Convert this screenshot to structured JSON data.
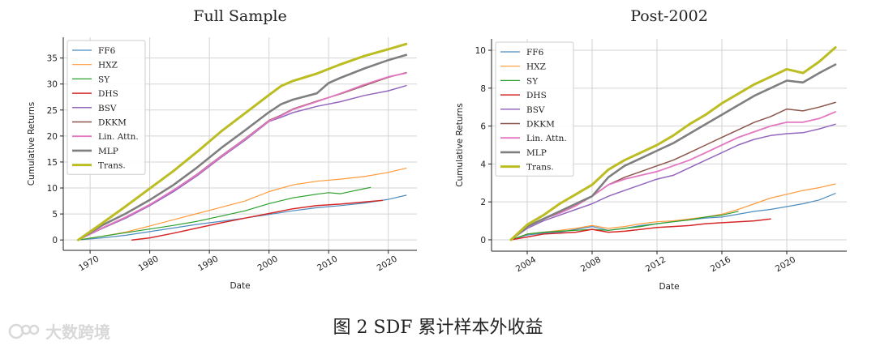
{
  "caption": "图 2 SDF 累计样本外收益",
  "watermark": "大数跨境",
  "chart_data": [
    {
      "type": "line",
      "title": "Full Sample",
      "xlabel": "Date",
      "ylabel": "Cumulative Returns",
      "xlim": [
        1965.5,
        2024.8
      ],
      "ylim": [
        -2,
        39
      ],
      "xticks": [
        1970,
        1980,
        1990,
        2000,
        2010,
        2020
      ],
      "yticks": [
        0,
        5,
        10,
        15,
        20,
        25,
        30,
        35
      ],
      "grid": true,
      "legend_position": "top-left",
      "series": [
        {
          "name": "FF6",
          "color": "#4c8cbf",
          "width": 1.2,
          "x": [
            1968,
            1972,
            1976,
            1980,
            1984,
            1988,
            1992,
            1996,
            2000,
            2004,
            2008,
            2012,
            2016,
            2020,
            2023
          ],
          "y": [
            0,
            0.4,
            0.9,
            1.6,
            2.3,
            3.0,
            3.6,
            4.2,
            4.9,
            5.6,
            6.2,
            6.6,
            7.1,
            7.8,
            8.6
          ]
        },
        {
          "name": "HXZ",
          "color": "#ff9a3c",
          "width": 1.2,
          "x": [
            1968,
            1972,
            1976,
            1980,
            1984,
            1988,
            1992,
            1996,
            2000,
            2004,
            2008,
            2012,
            2016,
            2020,
            2023
          ],
          "y": [
            0,
            0.7,
            1.5,
            2.7,
            3.9,
            5.1,
            6.3,
            7.5,
            9.3,
            10.6,
            11.3,
            11.7,
            12.2,
            13.0,
            13.8
          ]
        },
        {
          "name": "SY",
          "color": "#2ca02c",
          "width": 1.2,
          "x": [
            1968,
            1972,
            1976,
            1980,
            1984,
            1988,
            1992,
            1996,
            2000,
            2004,
            2008,
            2010,
            2012,
            2014,
            2017
          ],
          "y": [
            0,
            0.7,
            1.4,
            2.1,
            2.8,
            3.6,
            4.6,
            5.6,
            7.0,
            8.1,
            8.8,
            9.1,
            8.9,
            9.4,
            10.1
          ]
        },
        {
          "name": "DHS",
          "color": "#d62728",
          "width": 1.5,
          "x": [
            1977,
            1980,
            1984,
            1988,
            1992,
            1996,
            2000,
            2004,
            2008,
            2012,
            2016,
            2019
          ],
          "y": [
            0,
            0.4,
            1.3,
            2.3,
            3.3,
            4.2,
            5.1,
            6.0,
            6.6,
            6.9,
            7.3,
            7.6
          ]
        },
        {
          "name": "BSV",
          "color": "#9467bd",
          "width": 1.5,
          "x": [
            1968,
            1972,
            1976,
            1980,
            1984,
            1988,
            1992,
            1996,
            2000,
            2002,
            2004,
            2008,
            2012,
            2016,
            2020,
            2023
          ],
          "y": [
            0,
            2.2,
            4.2,
            6.6,
            9.3,
            12.4,
            15.9,
            19.2,
            22.8,
            23.6,
            24.5,
            25.7,
            26.6,
            27.8,
            28.7,
            29.7
          ]
        },
        {
          "name": "DKKM",
          "color": "#8c564b",
          "width": 1.5,
          "x": [
            1968,
            1972,
            1976,
            1980,
            1984,
            1988,
            1992,
            1996,
            2000,
            2002,
            2004,
            2008,
            2012,
            2016,
            2020,
            2023
          ],
          "y": [
            0,
            2.3,
            4.4,
            6.8,
            9.6,
            12.7,
            16.2,
            19.5,
            23.0,
            24.0,
            25.2,
            26.7,
            28.1,
            29.7,
            31.3,
            32.2
          ]
        },
        {
          "name": "Lin. Attn.",
          "color": "#e377c2",
          "width": 1.8,
          "x": [
            1968,
            1972,
            1976,
            1980,
            1984,
            1988,
            1992,
            1996,
            2000,
            2002,
            2004,
            2008,
            2012,
            2016,
            2020,
            2023
          ],
          "y": [
            0,
            2.3,
            4.4,
            6.8,
            9.6,
            12.6,
            16.1,
            19.4,
            22.9,
            23.9,
            25.1,
            26.6,
            28.2,
            29.9,
            31.4,
            32.1
          ]
        },
        {
          "name": "MLP",
          "color": "#7f7f7f",
          "width": 2.6,
          "x": [
            1968,
            1972,
            1976,
            1980,
            1984,
            1988,
            1992,
            1996,
            2000,
            2002,
            2004,
            2006,
            2008,
            2010,
            2012,
            2016,
            2020,
            2023
          ],
          "y": [
            0,
            2.8,
            5.1,
            7.7,
            10.6,
            14.0,
            17.7,
            21.1,
            24.6,
            26.1,
            27.0,
            27.6,
            28.2,
            30.2,
            31.2,
            33.0,
            34.6,
            35.6
          ]
        },
        {
          "name": "Trans.",
          "color": "#bcbd22",
          "width": 3.0,
          "x": [
            1968,
            1972,
            1976,
            1980,
            1984,
            1988,
            1992,
            1996,
            2000,
            2002,
            2004,
            2008,
            2012,
            2016,
            2020,
            2023
          ],
          "y": [
            0,
            3.2,
            6.5,
            9.9,
            13.3,
            17.0,
            20.9,
            24.4,
            27.9,
            29.6,
            30.6,
            32.0,
            33.8,
            35.4,
            36.7,
            37.7
          ]
        }
      ]
    },
    {
      "type": "line",
      "title": "Post-2002",
      "xlabel": "Date",
      "ylabel": "Cumulative Returns",
      "xlim": [
        2001.8,
        2023.7
      ],
      "ylim": [
        -0.6,
        10.6
      ],
      "xticks": [
        2004,
        2008,
        2012,
        2016,
        2020
      ],
      "yticks": [
        0,
        2,
        4,
        6,
        8,
        10
      ],
      "grid": true,
      "legend_position": "top-left",
      "series": [
        {
          "name": "FF6",
          "color": "#4c8cbf",
          "width": 1.2,
          "x": [
            2003,
            2004,
            2005,
            2006,
            2007,
            2008,
            2009,
            2010,
            2011,
            2012,
            2013,
            2014,
            2015,
            2016,
            2017,
            2018,
            2019,
            2020,
            2021,
            2022,
            2023
          ],
          "y": [
            0,
            0.25,
            0.35,
            0.4,
            0.55,
            0.7,
            0.5,
            0.6,
            0.75,
            0.85,
            0.95,
            1.05,
            1.15,
            1.2,
            1.35,
            1.5,
            1.6,
            1.75,
            1.9,
            2.1,
            2.45
          ]
        },
        {
          "name": "HXZ",
          "color": "#ff9a3c",
          "width": 1.2,
          "x": [
            2003,
            2004,
            2005,
            2006,
            2007,
            2008,
            2009,
            2010,
            2011,
            2012,
            2013,
            2014,
            2015,
            2016,
            2017,
            2018,
            2019,
            2020,
            2021,
            2022,
            2023
          ],
          "y": [
            0,
            0.3,
            0.4,
            0.5,
            0.6,
            0.75,
            0.6,
            0.7,
            0.85,
            0.95,
            1.0,
            1.1,
            1.2,
            1.35,
            1.6,
            1.9,
            2.2,
            2.4,
            2.6,
            2.75,
            2.95
          ]
        },
        {
          "name": "SY",
          "color": "#2ca02c",
          "width": 1.2,
          "x": [
            2003,
            2004,
            2005,
            2006,
            2007,
            2008,
            2009,
            2010,
            2011,
            2012,
            2013,
            2014,
            2015,
            2016,
            2017
          ],
          "y": [
            0,
            0.3,
            0.4,
            0.45,
            0.5,
            0.55,
            0.5,
            0.6,
            0.7,
            0.85,
            0.95,
            1.05,
            1.2,
            1.3,
            1.5
          ]
        },
        {
          "name": "DHS",
          "color": "#d62728",
          "width": 1.5,
          "x": [
            2003,
            2004,
            2005,
            2006,
            2007,
            2008,
            2009,
            2010,
            2011,
            2012,
            2013,
            2014,
            2015,
            2016,
            2017,
            2018,
            2019
          ],
          "y": [
            0,
            0.15,
            0.3,
            0.35,
            0.4,
            0.55,
            0.4,
            0.45,
            0.55,
            0.65,
            0.7,
            0.75,
            0.85,
            0.9,
            0.95,
            1.0,
            1.1
          ]
        },
        {
          "name": "BSV",
          "color": "#9467bd",
          "width": 1.5,
          "x": [
            2003,
            2004,
            2005,
            2006,
            2007,
            2008,
            2009,
            2010,
            2011,
            2012,
            2013,
            2014,
            2015,
            2016,
            2017,
            2018,
            2019,
            2020,
            2021,
            2022,
            2023
          ],
          "y": [
            0,
            0.6,
            1.0,
            1.3,
            1.6,
            1.9,
            2.3,
            2.6,
            2.9,
            3.2,
            3.4,
            3.8,
            4.2,
            4.6,
            5.0,
            5.3,
            5.5,
            5.6,
            5.65,
            5.85,
            6.1
          ]
        },
        {
          "name": "DKKM",
          "color": "#8c564b",
          "width": 1.5,
          "x": [
            2003,
            2004,
            2005,
            2006,
            2007,
            2008,
            2009,
            2010,
            2011,
            2012,
            2013,
            2014,
            2015,
            2016,
            2017,
            2018,
            2019,
            2020,
            2021,
            2022,
            2023
          ],
          "y": [
            0,
            0.7,
            1.1,
            1.4,
            1.8,
            2.3,
            2.9,
            3.3,
            3.6,
            3.9,
            4.2,
            4.6,
            5.0,
            5.4,
            5.8,
            6.2,
            6.5,
            6.9,
            6.8,
            7.0,
            7.25
          ]
        },
        {
          "name": "Lin. Attn.",
          "color": "#e377c2",
          "width": 1.8,
          "x": [
            2003,
            2004,
            2005,
            2006,
            2007,
            2008,
            2009,
            2010,
            2011,
            2012,
            2013,
            2014,
            2015,
            2016,
            2017,
            2018,
            2019,
            2020,
            2021,
            2022,
            2023
          ],
          "y": [
            0,
            0.7,
            1.1,
            1.4,
            1.8,
            2.3,
            2.9,
            3.2,
            3.4,
            3.6,
            3.9,
            4.2,
            4.6,
            5.0,
            5.4,
            5.7,
            6.0,
            6.2,
            6.2,
            6.4,
            6.75
          ]
        },
        {
          "name": "MLP",
          "color": "#7f7f7f",
          "width": 2.6,
          "x": [
            2003,
            2004,
            2005,
            2006,
            2007,
            2008,
            2009,
            2010,
            2011,
            2012,
            2013,
            2014,
            2015,
            2016,
            2017,
            2018,
            2019,
            2020,
            2021,
            2022,
            2023
          ],
          "y": [
            0,
            0.7,
            1.1,
            1.5,
            1.9,
            2.3,
            3.3,
            3.9,
            4.3,
            4.7,
            5.1,
            5.6,
            6.1,
            6.6,
            7.1,
            7.6,
            8.0,
            8.4,
            8.3,
            8.8,
            9.25
          ]
        },
        {
          "name": "Trans.",
          "color": "#bcbd22",
          "width": 3.0,
          "x": [
            2003,
            2004,
            2005,
            2006,
            2007,
            2008,
            2009,
            2010,
            2011,
            2012,
            2013,
            2014,
            2015,
            2016,
            2017,
            2018,
            2019,
            2020,
            2021,
            2022,
            2023
          ],
          "y": [
            0,
            0.8,
            1.3,
            1.9,
            2.4,
            2.9,
            3.7,
            4.2,
            4.6,
            5.0,
            5.5,
            6.1,
            6.6,
            7.2,
            7.7,
            8.2,
            8.6,
            9.0,
            8.8,
            9.4,
            10.15
          ]
        }
      ]
    }
  ]
}
